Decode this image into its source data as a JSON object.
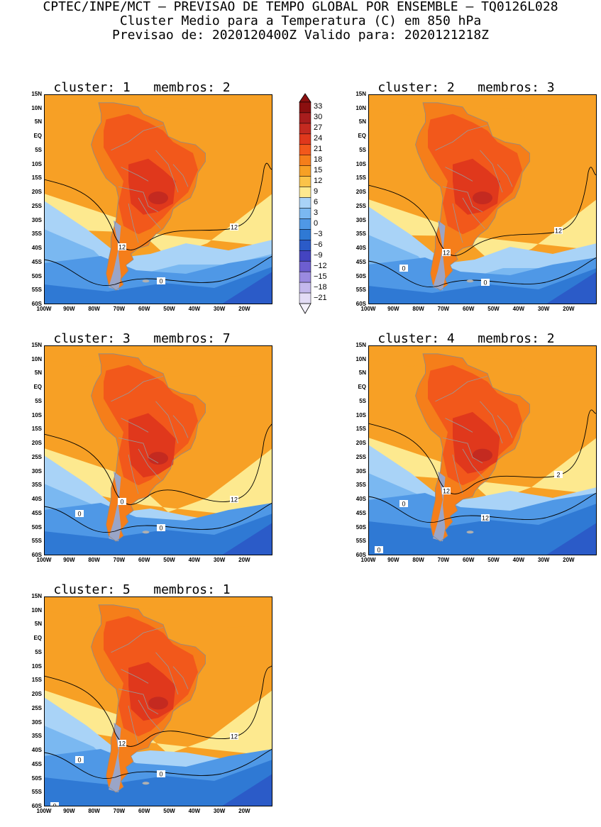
{
  "header": {
    "line1": "CPTEC/INPE/MCT – PREVISAO DE TEMPO GLOBAL POR ENSEMBLE – TQ0126L028",
    "line2": "Cluster Medio para a Temperatura (C) em 850 hPa",
    "line3": "Previsao de: 2020120400Z    Valido para: 2020121218Z"
  },
  "axes": {
    "lat_labels": [
      "15N",
      "10N",
      "5N",
      "EQ",
      "5S",
      "10S",
      "15S",
      "20S",
      "25S",
      "30S",
      "35S",
      "40S",
      "45S",
      "50S",
      "55S",
      "60S"
    ],
    "lon_labels": [
      "100W",
      "90W",
      "80W",
      "70W",
      "60W",
      "50W",
      "40W",
      "30W",
      "20W"
    ]
  },
  "colorbar": {
    "labels": [
      "33",
      "30",
      "27",
      "24",
      "21",
      "18",
      "15",
      "12",
      "9",
      "6",
      "3",
      "0",
      "-3",
      "-6",
      "-9",
      "-12",
      "-15",
      "-18",
      "-21"
    ],
    "colors": [
      "#8b0f0f",
      "#a81d1d",
      "#c42a20",
      "#e0381c",
      "#f2581b",
      "#f57e1a",
      "#f7a025",
      "#fbc349",
      "#fde98f",
      "#a9d3f7",
      "#7ab8f1",
      "#4f98e6",
      "#2f79d4",
      "#2b5bc8",
      "#4444c0",
      "#6d5ed0",
      "#9a8ae0",
      "#c3b8ec",
      "#e3dcf6"
    ]
  },
  "panels": [
    {
      "title": "cluster: 1   membros: 2",
      "contour_labels": [
        "12",
        "12",
        "0"
      ]
    },
    {
      "title": "cluster: 2   membros: 3",
      "contour_labels": [
        "12",
        "12",
        "0",
        "0"
      ]
    },
    {
      "title": "cluster: 3   membros: 7",
      "contour_labels": [
        "12",
        "0",
        "0",
        "0"
      ]
    },
    {
      "title": "cluster: 4   membros: 2",
      "contour_labels": [
        "2",
        "12",
        "12",
        "0",
        "0"
      ]
    },
    {
      "title": "cluster: 5   membros: 1",
      "contour_labels": [
        "12",
        "12",
        "0",
        "0",
        "0"
      ]
    }
  ]
}
